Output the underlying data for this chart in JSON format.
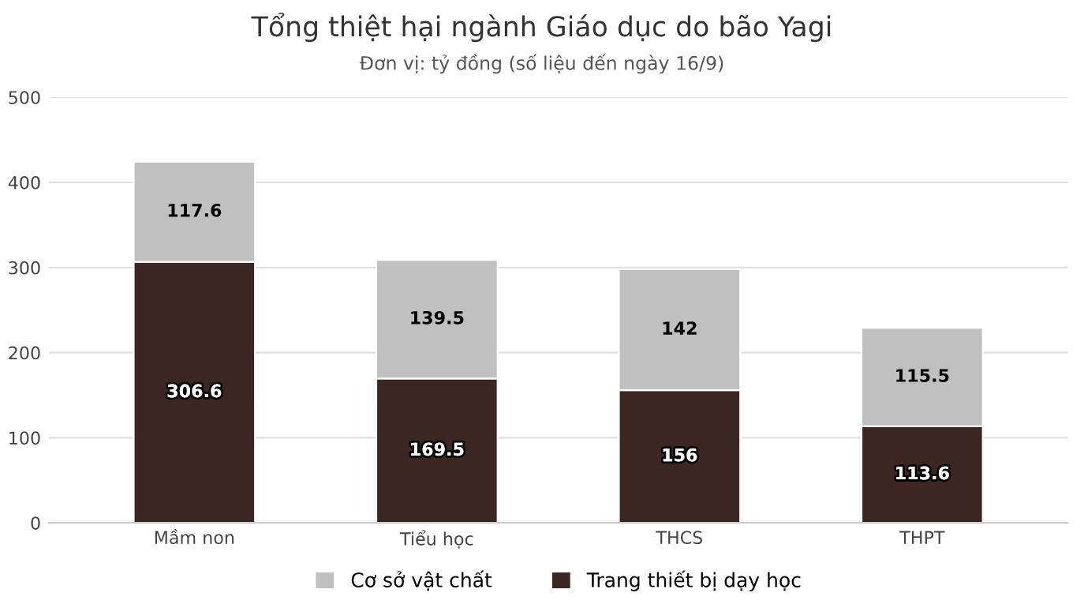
{
  "chart_data": {
    "type": "bar",
    "title": "Tổng thiệt hại ngành Giáo dục do bão Yagi",
    "subtitle": "Đơn vị: tỷ đồng (số liệu đến ngày 16/9)",
    "categories": [
      "Mầm non",
      "Tiểu học",
      "THCS",
      "THPT"
    ],
    "stacked": true,
    "series": [
      {
        "name": "Trang thiết bị dạy học",
        "color": "#3b2621",
        "values": [
          306.6,
          169.5,
          156,
          113.6
        ]
      },
      {
        "name": "Cơ sở vật chất",
        "color": "#c0c0c0",
        "values": [
          117.6,
          139.5,
          142,
          115.5
        ]
      }
    ],
    "data_labels": true,
    "ylim": [
      0,
      500
    ],
    "yticks": [
      0,
      100,
      200,
      300,
      400,
      500
    ],
    "grid": "y",
    "legend": "bottom"
  }
}
